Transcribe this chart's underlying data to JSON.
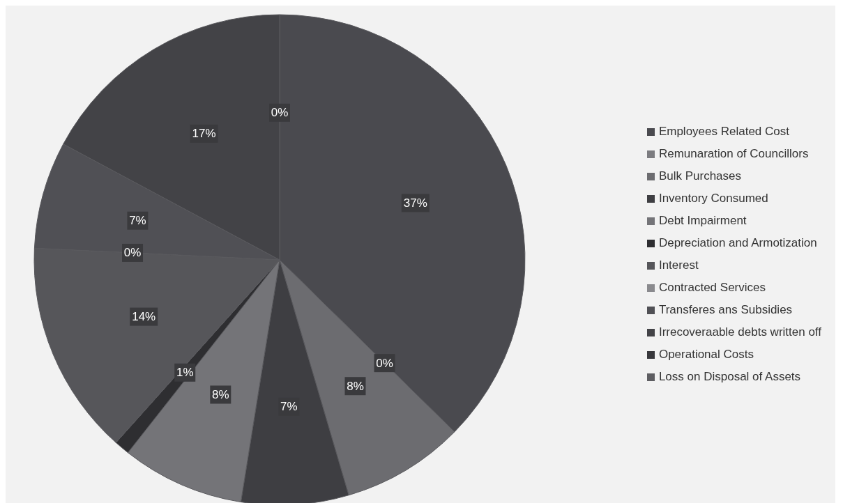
{
  "chart_data": {
    "type": "pie",
    "categories": [
      "Employees Related Cost",
      "Remunaration of Councillors",
      "Bulk Purchases",
      "Inventory Consumed",
      "Debt Impairment",
      "Depreciation and Armotization",
      "Interest",
      "Contracted Services",
      "Transferes ans Subsidies",
      "Irrecoveraable debts written off",
      "Operational Costs",
      "Loss on Disposal of Assets"
    ],
    "values": [
      37,
      0,
      8,
      7,
      8,
      1,
      14,
      0,
      7,
      17,
      0,
      0
    ],
    "value_labels": [
      "37%",
      "0%",
      "8%",
      "7%",
      "8%",
      "1%",
      "14%",
      "0%",
      "7%",
      "17%",
      "0%",
      null
    ],
    "colors": [
      "#4a4a4f",
      "#7c7c80",
      "#6c6c70",
      "#3e3e42",
      "#747478",
      "#2e2e31",
      "#56565a",
      "#8a8a8e",
      "#505055",
      "#434347",
      "#38383c",
      "#5e5e62"
    ],
    "legend": "right"
  }
}
